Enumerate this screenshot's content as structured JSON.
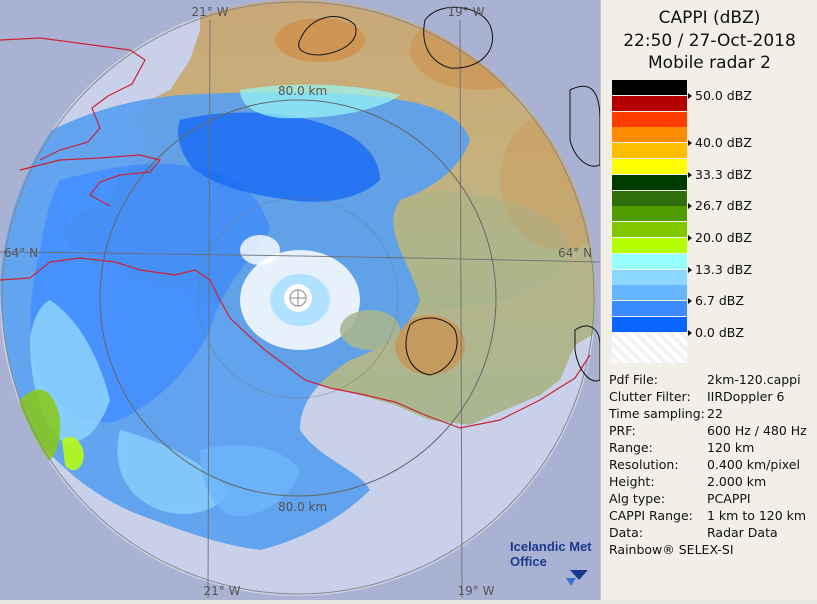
{
  "header": {
    "product": "CAPPI (dBZ)",
    "datetime": "22:50 / 27-Oct-2018",
    "radar": "Mobile radar 2"
  },
  "legend": {
    "labels": [
      "50.0 dBZ",
      "40.0 dBZ",
      "33.3 dBZ",
      "26.7 dBZ",
      "20.0 dBZ",
      "13.3 dBZ",
      "6.7 dBZ",
      "0.0 dBZ"
    ],
    "label_rows": [
      1,
      4,
      6,
      8,
      10,
      12,
      14,
      16
    ],
    "colors": [
      "#000000",
      "#b40000",
      "#ff3c00",
      "#ff8c00",
      "#ffbe00",
      "#ffff00",
      "#003c00",
      "#2f6e0a",
      "#509b00",
      "#82c800",
      "#b4ff00",
      "#96ffff",
      "#8cd7ff",
      "#64b4ff",
      "#3c8cff",
      "#0a64ff",
      "#ffffff"
    ]
  },
  "meta": [
    {
      "key": "Pdf File:",
      "value": "2km-120.cappi"
    },
    {
      "key": "Clutter Filter:",
      "value": "IIRDoppler 6"
    },
    {
      "key": "Time sampling:",
      "value": "22"
    },
    {
      "key": "PRF:",
      "value": "600 Hz / 480 Hz"
    },
    {
      "key": "Range:",
      "value": "120 km"
    },
    {
      "key": "Resolution:",
      "value": "0.400 km/pixel"
    },
    {
      "key": "Height:",
      "value": "2.000 km"
    },
    {
      "key": "Alg type:",
      "value": "PCAPPI"
    },
    {
      "key": "CAPPI Range:",
      "value": "1 km to 120 km"
    },
    {
      "key": "Data:",
      "value": "Radar Data"
    }
  ],
  "credit": "Rainbow® SELEX-SI",
  "map": {
    "lon_top_left": "21° W",
    "lon_top_right": "19° W",
    "lon_bottom_left": "21° W",
    "lon_bottom_right": "19° W",
    "lat_right": "64° N",
    "lat_left": "64° N",
    "range_label_top": "80.0 km",
    "range_label_bottom": "80.0 km",
    "logo_line1": "Icelandic Met",
    "logo_line2": "Office"
  }
}
